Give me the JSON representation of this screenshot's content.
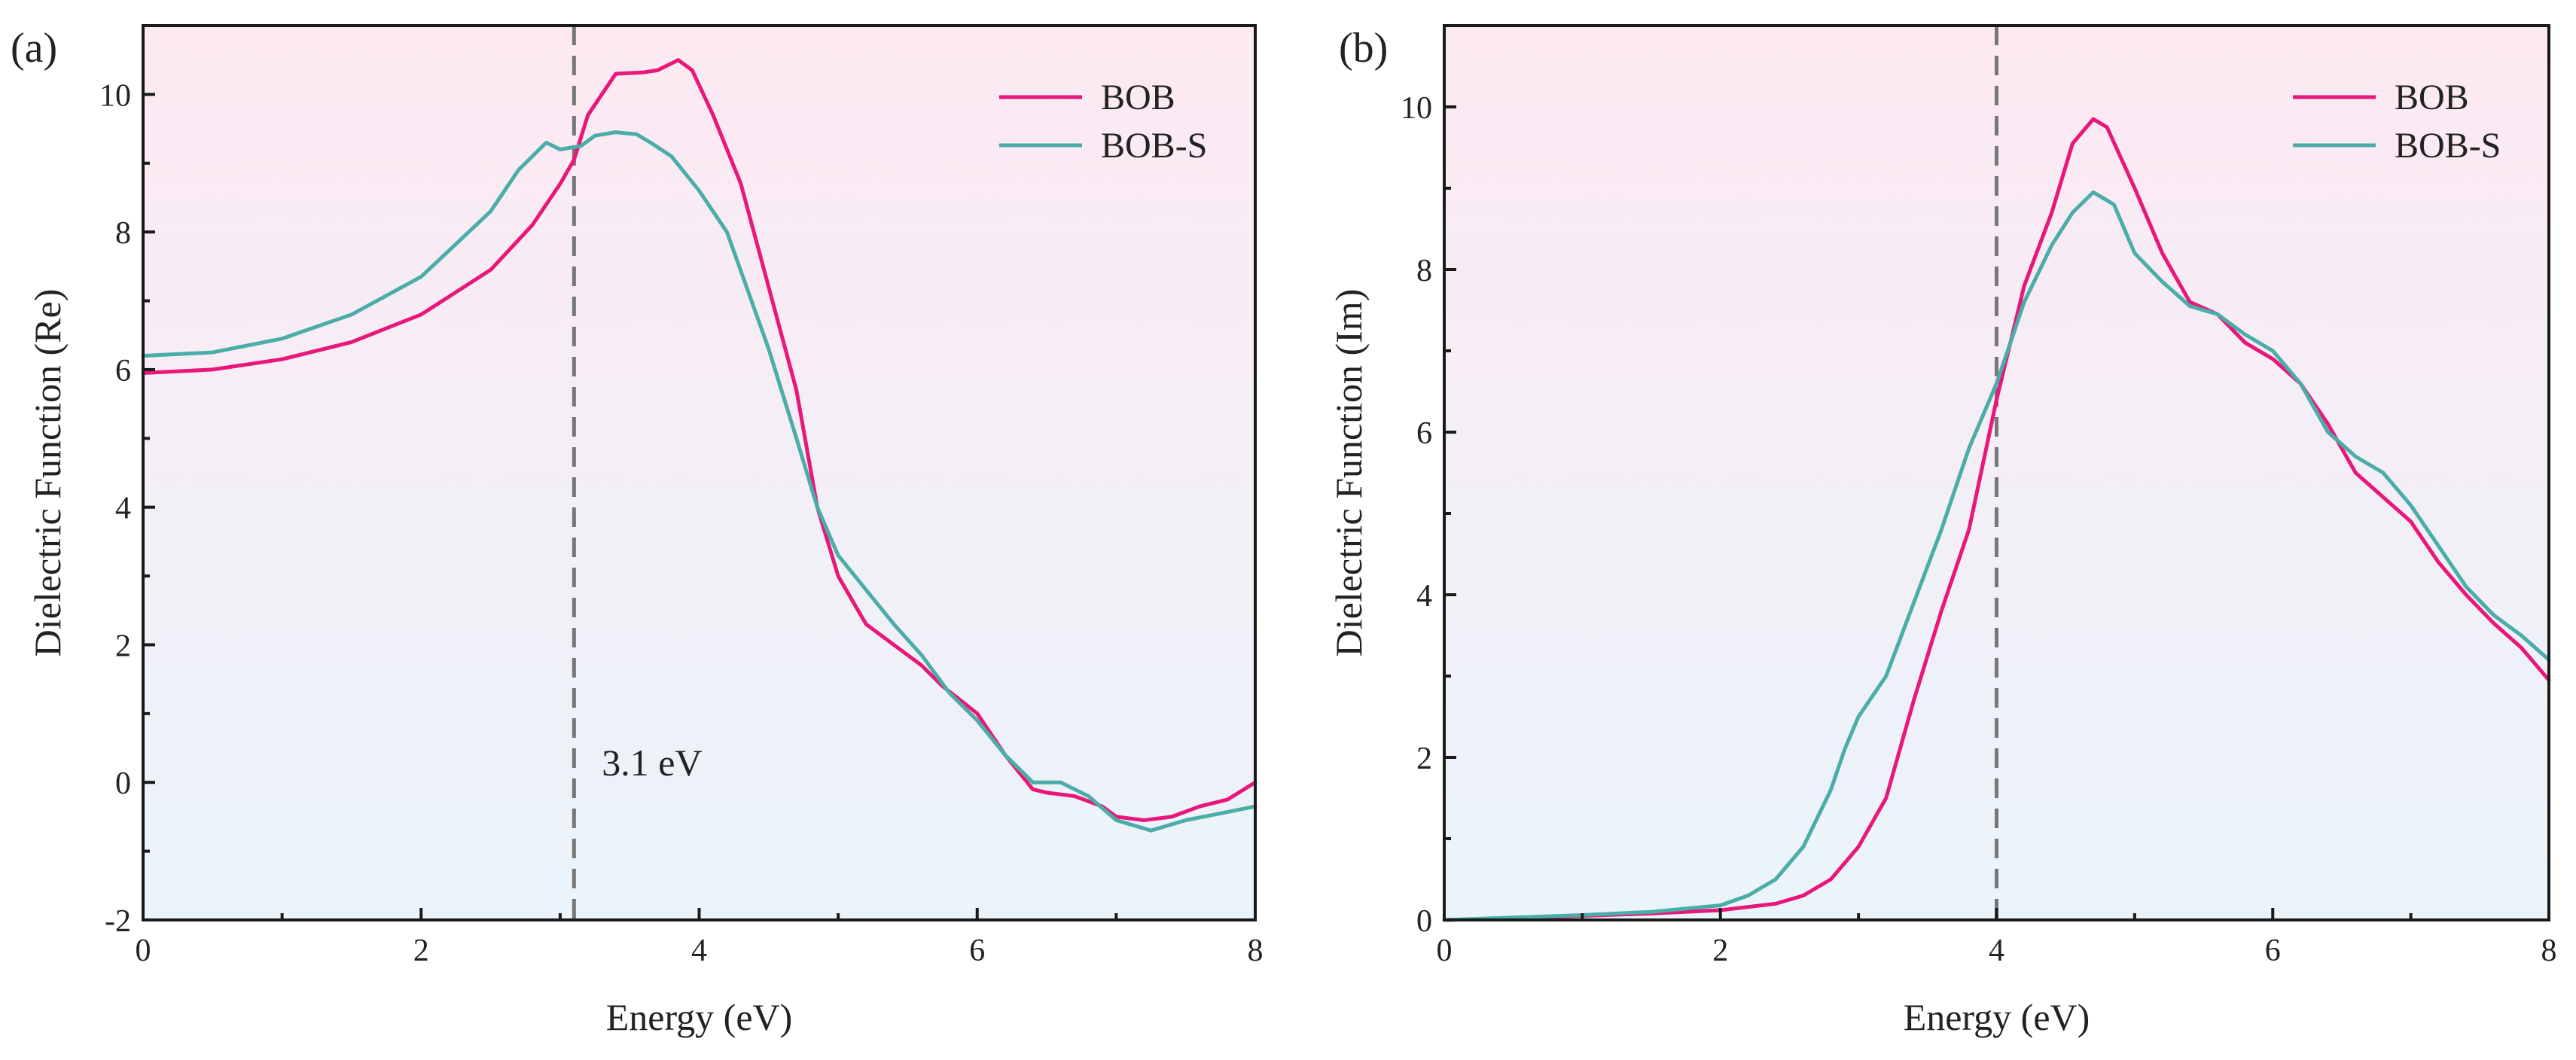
{
  "chart_data": [
    {
      "type": "line",
      "panel_label": "(a)",
      "title": "",
      "xlabel": "Energy (eV)",
      "ylabel": "Dielectric Function (Re)",
      "xlim": [
        0,
        8
      ],
      "ylim": [
        -2,
        11
      ],
      "xticks": [
        0,
        2,
        4,
        6,
        8
      ],
      "yticks": [
        -2,
        0,
        2,
        4,
        6,
        8,
        10
      ],
      "xtick_labels": [
        "0",
        "2",
        "4",
        "6",
        "8"
      ],
      "ytick_labels": [
        "-2",
        "0",
        "2",
        "4",
        "6",
        "8",
        "10"
      ],
      "background_gradient": {
        "top": "#fde9f2",
        "bottom": "#eaf4fa"
      },
      "vline": {
        "x": 3.1,
        "color": "#777777"
      },
      "annotation": {
        "text": "3.1 eV",
        "x": 3.3,
        "y": 0.1
      },
      "legend_position": "top-right",
      "series": [
        {
          "name": "BOB",
          "color": "#e8177a",
          "x": [
            0,
            0.5,
            1.0,
            1.5,
            2.0,
            2.5,
            2.8,
            3.0,
            3.1,
            3.2,
            3.4,
            3.6,
            3.7,
            3.85,
            3.95,
            4.1,
            4.3,
            4.5,
            4.7,
            4.85,
            5.0,
            5.2,
            5.4,
            5.6,
            5.75,
            6.0,
            6.2,
            6.4,
            6.5,
            6.7,
            6.9,
            7.0,
            7.2,
            7.4,
            7.6,
            7.8,
            8.0
          ],
          "values": [
            5.95,
            6.0,
            6.15,
            6.4,
            6.8,
            7.45,
            8.1,
            8.7,
            9.05,
            9.7,
            10.3,
            10.32,
            10.35,
            10.5,
            10.35,
            9.7,
            8.7,
            7.2,
            5.7,
            4.0,
            3.0,
            2.3,
            2.0,
            1.7,
            1.4,
            1.0,
            0.4,
            -0.1,
            -0.15,
            -0.2,
            -0.35,
            -0.5,
            -0.55,
            -0.5,
            -0.35,
            -0.25,
            0.0
          ]
        },
        {
          "name": "BOB-S",
          "color": "#4aada7",
          "x": [
            0,
            0.5,
            1.0,
            1.5,
            2.0,
            2.5,
            2.7,
            2.9,
            3.0,
            3.15,
            3.25,
            3.4,
            3.55,
            3.65,
            3.8,
            4.0,
            4.2,
            4.5,
            4.7,
            4.85,
            5.0,
            5.2,
            5.4,
            5.6,
            5.8,
            6.0,
            6.2,
            6.4,
            6.6,
            6.8,
            7.0,
            7.25,
            7.5,
            7.75,
            8.0
          ],
          "values": [
            6.2,
            6.25,
            6.45,
            6.8,
            7.35,
            8.3,
            8.9,
            9.3,
            9.2,
            9.25,
            9.4,
            9.45,
            9.42,
            9.3,
            9.1,
            8.6,
            8.0,
            6.3,
            5.0,
            4.0,
            3.3,
            2.8,
            2.3,
            1.85,
            1.3,
            0.9,
            0.4,
            0.0,
            0.0,
            -0.2,
            -0.55,
            -0.7,
            -0.55,
            -0.45,
            -0.35
          ]
        }
      ]
    },
    {
      "type": "line",
      "panel_label": "(b)",
      "title": "",
      "xlabel": "Energy (eV)",
      "ylabel": "Dielectric Function (Im)",
      "xlim": [
        0,
        8
      ],
      "ylim": [
        0,
        11
      ],
      "xticks": [
        0,
        2,
        4,
        6,
        8
      ],
      "yticks": [
        0,
        2,
        4,
        6,
        8,
        10
      ],
      "xtick_labels": [
        "0",
        "2",
        "4",
        "6",
        "8"
      ],
      "ytick_labels": [
        "0",
        "2",
        "4",
        "6",
        "8",
        "10"
      ],
      "background_gradient": {
        "top": "#fde9f2",
        "bottom": "#eaf4fa"
      },
      "vline": {
        "x": 4.0,
        "color": "#777777"
      },
      "legend_position": "top-right",
      "series": [
        {
          "name": "BOB",
          "color": "#e8177a",
          "x": [
            0,
            0.5,
            1.0,
            1.5,
            2.0,
            2.4,
            2.6,
            2.8,
            2.9,
            3.0,
            3.2,
            3.4,
            3.6,
            3.8,
            4.0,
            4.2,
            4.4,
            4.55,
            4.7,
            4.8,
            5.0,
            5.2,
            5.4,
            5.6,
            5.8,
            6.0,
            6.2,
            6.4,
            6.6,
            6.8,
            7.0,
            7.2,
            7.4,
            7.6,
            7.8,
            8.0
          ],
          "values": [
            0,
            0.02,
            0.05,
            0.08,
            0.12,
            0.2,
            0.3,
            0.5,
            0.7,
            0.9,
            1.5,
            2.7,
            3.8,
            4.8,
            6.4,
            7.8,
            8.7,
            9.55,
            9.85,
            9.75,
            9.0,
            8.2,
            7.6,
            7.45,
            7.1,
            6.9,
            6.6,
            6.1,
            5.5,
            5.2,
            4.9,
            4.4,
            4.0,
            3.65,
            3.35,
            2.95
          ]
        },
        {
          "name": "BOB-S",
          "color": "#4aada7",
          "x": [
            0,
            0.5,
            1.0,
            1.5,
            2.0,
            2.2,
            2.4,
            2.6,
            2.8,
            2.9,
            3.0,
            3.2,
            3.4,
            3.6,
            3.8,
            4.0,
            4.2,
            4.4,
            4.55,
            4.7,
            4.85,
            5.0,
            5.2,
            5.4,
            5.6,
            5.8,
            6.0,
            6.2,
            6.4,
            6.6,
            6.8,
            7.0,
            7.2,
            7.4,
            7.6,
            7.8,
            8.0
          ],
          "values": [
            0,
            0.03,
            0.06,
            0.1,
            0.18,
            0.3,
            0.5,
            0.9,
            1.6,
            2.1,
            2.5,
            3.0,
            3.9,
            4.8,
            5.8,
            6.6,
            7.6,
            8.3,
            8.7,
            8.95,
            8.8,
            8.2,
            7.85,
            7.55,
            7.45,
            7.2,
            7.0,
            6.6,
            6.0,
            5.7,
            5.5,
            5.1,
            4.6,
            4.1,
            3.75,
            3.5,
            3.2
          ]
        }
      ]
    }
  ]
}
